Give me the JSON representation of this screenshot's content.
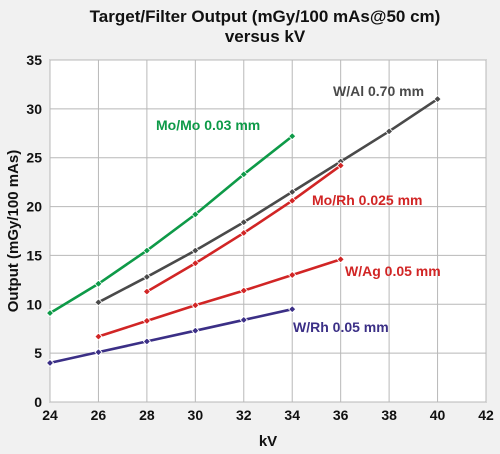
{
  "chart_data": {
    "type": "line",
    "title_line1": "Target/Filter Output (mGy/100 mAs@50 cm)",
    "title_line2": "versus kV",
    "xlabel": "kV",
    "ylabel": "Output (mGy/100 mAs)",
    "xlim": [
      24,
      42
    ],
    "ylim": [
      0,
      35
    ],
    "xticks": [
      24,
      26,
      28,
      30,
      32,
      34,
      36,
      38,
      40,
      42
    ],
    "yticks": [
      0,
      5,
      10,
      15,
      20,
      25,
      30,
      35
    ],
    "grid": true,
    "series": [
      {
        "name": "Mo/Mo 0.03 mm",
        "color": "#0e9a48",
        "x": [
          24,
          26,
          28,
          30,
          32,
          34
        ],
        "y": [
          9.1,
          12.1,
          15.5,
          19.2,
          23.3,
          27.2
        ]
      },
      {
        "name": "W/Al 0.70 mm",
        "color": "#4a4a4a",
        "x": [
          26,
          28,
          30,
          32,
          34,
          36,
          38,
          40
        ],
        "y": [
          10.2,
          12.8,
          15.5,
          18.4,
          21.5,
          24.6,
          27.7,
          31.0
        ]
      },
      {
        "name": "Mo/Rh 0.025 mm",
        "color": "#d12525",
        "x": [
          28,
          30,
          32,
          34,
          36
        ],
        "y": [
          11.3,
          14.2,
          17.3,
          20.6,
          24.2
        ]
      },
      {
        "name": "W/Ag 0.05 mm",
        "color": "#d12525",
        "x": [
          26,
          28,
          30,
          32,
          34,
          36
        ],
        "y": [
          6.7,
          8.3,
          9.9,
          11.4,
          13.0,
          14.6
        ]
      },
      {
        "name": "W/Rh 0.05 mm",
        "color": "#3b2f86",
        "x": [
          24,
          26,
          28,
          30,
          32,
          34
        ],
        "y": [
          4.0,
          5.1,
          6.2,
          7.3,
          8.4,
          9.5
        ]
      }
    ]
  }
}
